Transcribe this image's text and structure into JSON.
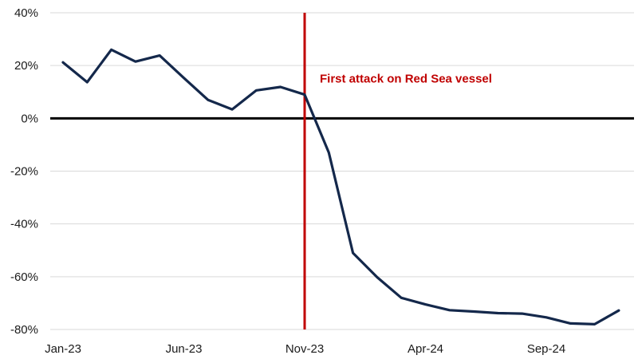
{
  "chart_data": {
    "type": "line",
    "title": "",
    "xlabel": "",
    "ylabel": "",
    "ylim": [
      -80,
      40
    ],
    "yticks": [
      40,
      20,
      0,
      -20,
      -40,
      -60,
      -80
    ],
    "ytick_labels": [
      "40%",
      "20%",
      "0%",
      "-20%",
      "-40%",
      "-60%",
      "-80%"
    ],
    "x_tick_labels": [
      "Jan-23",
      "Jun-23",
      "Nov-23",
      "Apr-24",
      "Sep-24"
    ],
    "grid": "horizontal",
    "x": [
      "Jan-23",
      "Feb-23",
      "Mar-23",
      "Apr-23",
      "May-23",
      "Jun-23",
      "Jul-23",
      "Aug-23",
      "Sep-23",
      "Oct-23",
      "Nov-23",
      "Dec-23",
      "Jan-24",
      "Feb-24",
      "Mar-24",
      "Apr-24",
      "May-24",
      "Jun-24",
      "Jul-24",
      "Aug-24",
      "Sep-24",
      "Oct-24",
      "Nov-24",
      "Dec-24"
    ],
    "series": [
      {
        "name": "",
        "color": "#14284b",
        "values": [
          21.2,
          13.7,
          26,
          21.5,
          23.8,
          15.3,
          7,
          3.4,
          10.6,
          11.9,
          9,
          -13,
          -51,
          -60.2,
          -68,
          -70.5,
          -72.7,
          -73.2,
          -73.8,
          -74,
          -75.4,
          -77.7,
          -78,
          -72.8
        ]
      }
    ],
    "zero_line": true,
    "annotation": {
      "text": "First attack on Red Sea vessel",
      "x": "Nov-23",
      "color": "#c00000"
    }
  }
}
